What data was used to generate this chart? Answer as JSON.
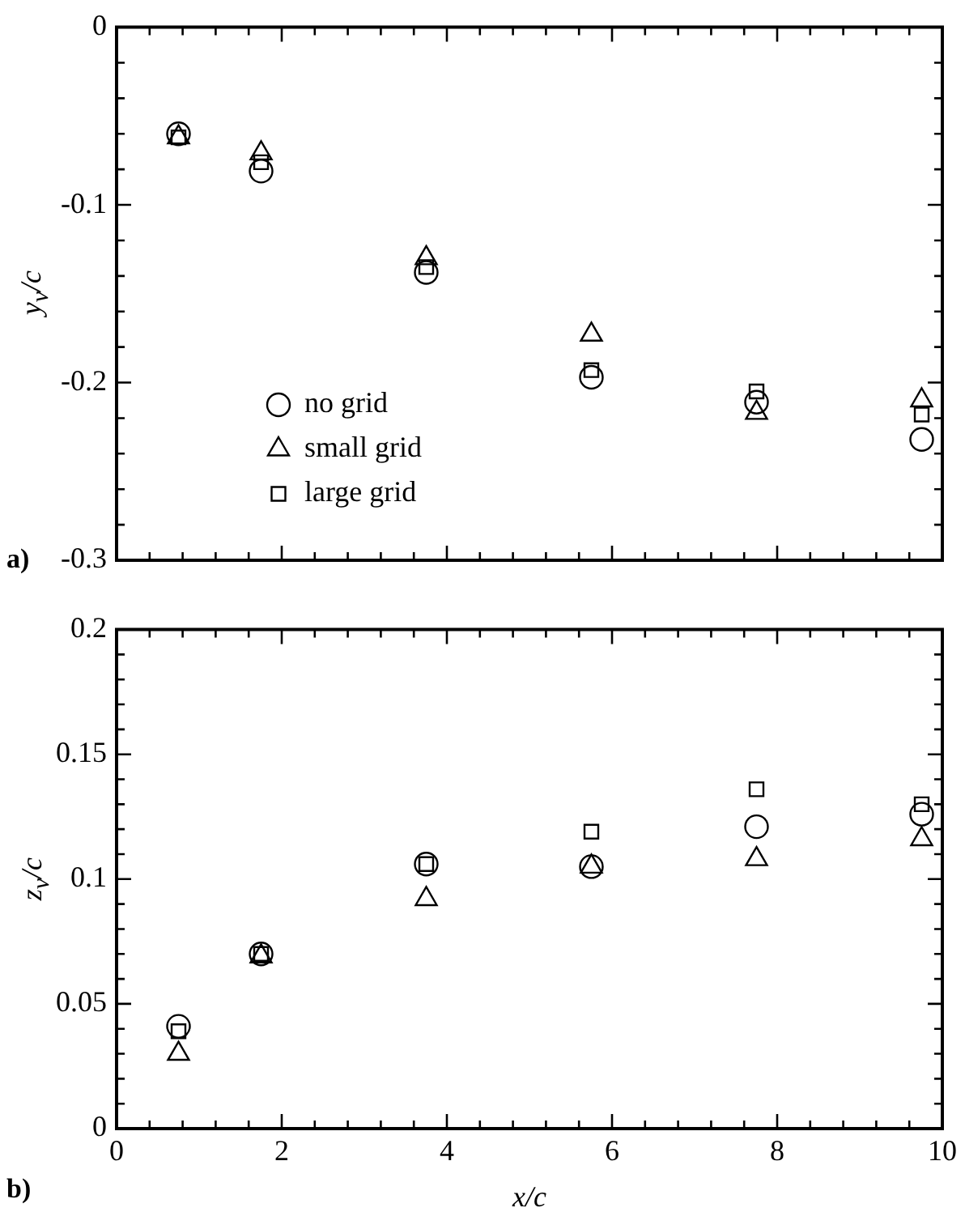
{
  "chart_data": [
    {
      "type": "scatter",
      "ylabel": "y$_{v}$/c",
      "annotations": [
        "a)"
      ],
      "x": [
        0.75,
        1.75,
        3.75,
        5.75,
        7.75,
        9.75
      ],
      "series": [
        {
          "name": "no grid",
          "color": "#000000",
          "marker": "circle",
          "values": [
            -0.06,
            -0.081,
            -0.138,
            -0.197,
            -0.211,
            -0.232
          ]
        },
        {
          "name": "small grid",
          "color": "#000000",
          "marker": "triangle",
          "values": [
            -0.062,
            -0.071,
            -0.13,
            -0.173,
            -0.217,
            -0.21
          ]
        },
        {
          "name": "large grid",
          "color": "#000000",
          "marker": "square",
          "values": [
            -0.062,
            -0.076,
            -0.135,
            -0.193,
            -0.205,
            -0.218
          ]
        }
      ],
      "xlim": [
        0,
        10
      ],
      "xticks": [
        0,
        {
          "value": 0.4,
          "label": null
        },
        {
          "value": 0.8,
          "label": null
        },
        {
          "value": 1.2,
          "label": null
        },
        {
          "value": 1.6,
          "label": null
        },
        2,
        {
          "value": 2.4,
          "label": null
        },
        {
          "value": 2.8,
          "label": null
        },
        {
          "value": 3.2,
          "label": null
        },
        {
          "value": 3.6,
          "label": null
        },
        4,
        {
          "value": 4.4,
          "label": null
        },
        {
          "value": 4.8,
          "label": null
        },
        {
          "value": 5.2,
          "label": null
        },
        {
          "value": 5.6,
          "label": null
        },
        6,
        {
          "value": 6.4,
          "label": null
        },
        {
          "value": 6.8,
          "label": null
        },
        {
          "value": 7.2,
          "label": null
        },
        {
          "value": 7.6,
          "label": null
        },
        8,
        {
          "value": 8.4,
          "label": null
        },
        {
          "value": 8.8,
          "label": null
        },
        {
          "value": 9.2,
          "label": null
        },
        {
          "value": 9.6,
          "label": null
        },
        10
      ],
      "ylim": [
        -0.3,
        0
      ],
      "yticks": [
        -0.3,
        {
          "value": -0.28,
          "label": null
        },
        {
          "value": -0.26,
          "label": null
        },
        {
          "value": -0.24,
          "label": null
        },
        {
          "value": -0.22,
          "label": null
        },
        -0.2,
        {
          "value": -0.18,
          "label": null
        },
        {
          "value": -0.16,
          "label": null
        },
        {
          "value": -0.14,
          "label": null
        },
        {
          "value": -0.12,
          "label": null
        },
        -0.1,
        {
          "value": -0.08,
          "label": null
        },
        {
          "value": -0.06,
          "label": null
        },
        {
          "value": -0.04,
          "label": null
        },
        {
          "value": -0.02,
          "label": null
        },
        0
      ],
      "tick_labels": "y",
      "grid": false,
      "legend": "bottom left"
    },
    {
      "type": "scatter",
      "ylabel": "z$_{v}$/c",
      "xlabel": "x/c",
      "annotations": [
        "b)"
      ],
      "x": [
        0.75,
        1.75,
        3.75,
        5.75,
        7.75,
        9.75
      ],
      "series": [
        {
          "color": "#000000",
          "marker": "circle",
          "values": [
            0.041,
            0.07,
            0.106,
            0.105,
            0.121,
            0.126
          ]
        },
        {
          "color": "#000000",
          "marker": "triangle",
          "values": [
            0.03,
            0.069,
            0.092,
            0.105,
            0.108,
            0.116
          ]
        },
        {
          "color": "#000000",
          "marker": "square",
          "values": [
            0.039,
            0.07,
            0.106,
            0.119,
            0.136,
            0.13
          ]
        }
      ],
      "xlim": [
        0,
        10
      ],
      "xticks": [
        0,
        {
          "value": 0.4,
          "label": null
        },
        {
          "value": 0.8,
          "label": null
        },
        {
          "value": 1.2,
          "label": null
        },
        {
          "value": 1.6,
          "label": null
        },
        2,
        {
          "value": 2.4,
          "label": null
        },
        {
          "value": 2.8,
          "label": null
        },
        {
          "value": 3.2,
          "label": null
        },
        {
          "value": 3.6,
          "label": null
        },
        4,
        {
          "value": 4.4,
          "label": null
        },
        {
          "value": 4.8,
          "label": null
        },
        {
          "value": 5.2,
          "label": null
        },
        {
          "value": 5.6,
          "label": null
        },
        6,
        {
          "value": 6.4,
          "label": null
        },
        {
          "value": 6.8,
          "label": null
        },
        {
          "value": 7.2,
          "label": null
        },
        {
          "value": 7.6,
          "label": null
        },
        8,
        {
          "value": 8.4,
          "label": null
        },
        {
          "value": 8.8,
          "label": null
        },
        {
          "value": 9.2,
          "label": null
        },
        {
          "value": 9.6,
          "label": null
        },
        10
      ],
      "ylim": [
        0,
        0.2
      ],
      "yticks": [
        0,
        {
          "value": 0.01,
          "label": null
        },
        {
          "value": 0.02,
          "label": null
        },
        {
          "value": 0.03,
          "label": null
        },
        {
          "value": 0.04,
          "label": null
        },
        0.05,
        {
          "value": 0.06,
          "label": null
        },
        {
          "value": 0.07,
          "label": null
        },
        {
          "value": 0.08,
          "label": null
        },
        {
          "value": 0.09,
          "label": null
        },
        0.1,
        {
          "value": 0.11,
          "label": null
        },
        {
          "value": 0.12,
          "label": null
        },
        {
          "value": 0.13,
          "label": null
        },
        {
          "value": 0.14,
          "label": null
        },
        0.15,
        {
          "value": 0.16,
          "label": null
        },
        {
          "value": 0.17,
          "label": null
        },
        {
          "value": 0.18,
          "label": null
        },
        {
          "value": 0.19,
          "label": null
        },
        0.2
      ],
      "grid": false,
      "legend": false
    }
  ]
}
